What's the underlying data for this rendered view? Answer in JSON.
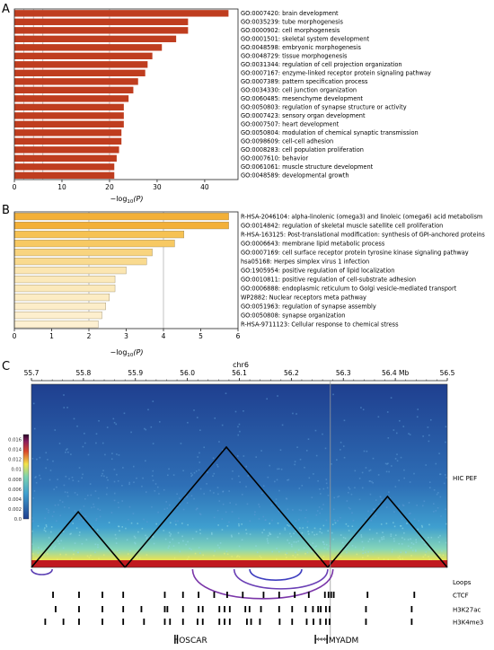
{
  "panels": {
    "a": {
      "letter": "A",
      "chart_data": {
        "type": "bar",
        "orientation": "horizontal",
        "xlabel_main": "−log",
        "xlabel_sub": "10",
        "xlabel_arg": "(P)",
        "xlim": [
          0,
          47
        ],
        "xticks": [
          0,
          10,
          20,
          30,
          40
        ],
        "grid_x": [
          2,
          4,
          6,
          20
        ],
        "bar_color": "#bf3d1f",
        "categories": [
          "GO:0007420: brain development",
          "GO:0035239: tube morphogenesis",
          "GO:0000902: cell morphogenesis",
          "GO:0001501: skeletal system development",
          "GO:0048598: embryonic morphogenesis",
          "GO:0048729: tissue morphogenesis",
          "GO:0031344: regulation of cell projection organization",
          "GO:0007167: enzyme-linked receptor protein signaling pathway",
          "GO:0007389: pattern specification process",
          "GO:0034330: cell junction organization",
          "GO:0060485: mesenchyme development",
          "GO:0050803: regulation of synapse structure or activity",
          "GO:0007423: sensory organ development",
          "GO:0007507: heart development",
          "GO:0050804: modulation of chemical synaptic transmission",
          "GO:0098609: cell-cell adhesion",
          "GO:0008283: cell population proliferation",
          "GO:0007610: behavior",
          "GO:0061061: muscle structure development",
          "GO:0048589: developmental growth"
        ],
        "values": [
          45,
          36.5,
          36.5,
          34,
          31,
          29,
          28,
          27.5,
          26,
          25,
          24,
          23,
          23,
          23,
          22.5,
          22.5,
          22,
          21.5,
          21,
          21
        ]
      }
    },
    "b": {
      "letter": "B",
      "chart_data": {
        "type": "bar",
        "orientation": "horizontal",
        "xlabel_main": "−log",
        "xlabel_sub": "10",
        "xlabel_arg": "(P)",
        "xlim": [
          0,
          6
        ],
        "xticks": [
          0,
          1,
          2,
          3,
          4,
          5,
          6
        ],
        "grid_x": [
          2,
          4
        ],
        "categories": [
          "R-HSA-2046104: alpha-linolenic (omega3) and linoleic (omega6) acid metabolism",
          "GO:0014842: regulation of skeletal muscle satellite cell proliferation",
          "R-HSA-163125: Post-translational modification: synthesis of GPI-anchored proteins",
          "GO:0006643: membrane lipid metabolic process",
          "GO:0007169: cell surface receptor protein tyrosine kinase signaling pathway",
          "hsa05168: Herpes simplex virus 1 infection",
          "GO:1905954: positive regulation of lipid localization",
          "GO:0010811: positive regulation of cell-substrate adhesion",
          "GO:0006888: endoplasmic reticulum to Golgi vesicle-mediated transport",
          "WP2882: Nuclear receptors meta pathway",
          "GO:0051963: regulation of synapse assembly",
          "GO:0050808: synapse organization",
          "R-HSA-9711123: Cellular response to chemical stress"
        ],
        "values": [
          5.75,
          5.75,
          4.55,
          4.3,
          3.7,
          3.55,
          3.0,
          2.7,
          2.7,
          2.55,
          2.45,
          2.35,
          2.25
        ],
        "colors": [
          "#f3b038",
          "#f3b038",
          "#f6c253",
          "#f7c963",
          "#f8d47f",
          "#f9da8f",
          "#fbe6b2",
          "#fbe9bb",
          "#fbe9bb",
          "#fcecc4",
          "#fcedc9",
          "#fdefce",
          "#fdf0d2"
        ]
      }
    },
    "c": {
      "letter": "C",
      "chart_data": {
        "type": "heatmap",
        "chrom": "chr6",
        "xlim": [
          55.7,
          56.5
        ],
        "xticks": [
          "55.7",
          "55.8",
          "55.9",
          "56.0",
          "56.1",
          "56.2",
          "56.3",
          "56.4 Mb",
          "56.5"
        ],
        "xtick_values": [
          55.7,
          55.8,
          55.9,
          56.0,
          56.1,
          56.2,
          56.3,
          56.4,
          56.5
        ],
        "colorbar_ticks": [
          "0.016",
          "0.014",
          "0.012",
          "0.01",
          "0.008",
          "0.006",
          "0.004",
          "0.002",
          "0.0"
        ],
        "colorbar_range": [
          0,
          0.017
        ],
        "hic_track_label": "HIC PEF",
        "domains": [
          [
            55.7,
            55.88
          ],
          [
            55.88,
            56.27
          ],
          [
            56.27,
            56.5
          ]
        ],
        "highlight_x": 56.275,
        "loops_label": "Loops",
        "loops": [
          [
            55.7,
            55.74
          ],
          [
            56.01,
            56.28
          ],
          [
            56.09,
            56.27
          ],
          [
            56.12,
            56.22
          ]
        ],
        "tracks": [
          {
            "name": "CTCF",
            "peaks": [
              55.74,
              55.79,
              55.835,
              55.875,
              55.955,
              55.99,
              56.02,
              56.05,
              56.075,
              56.105,
              56.145,
              56.175,
              56.205,
              56.232,
              56.263,
              56.27,
              56.275,
              56.28,
              56.345,
              56.435
            ]
          },
          {
            "name": "H3K27ac",
            "peaks": [
              55.745,
              55.79,
              55.835,
              55.875,
              55.91,
              55.955,
              55.96,
              55.99,
              56.02,
              56.028,
              56.06,
              56.07,
              56.08,
              56.11,
              56.118,
              56.14,
              56.175,
              56.2,
              56.226,
              56.24,
              56.25,
              56.255,
              56.265,
              56.272,
              56.342,
              56.43
            ]
          },
          {
            "name": "H3K4me3",
            "peaks": [
              55.725,
              55.76,
              55.79,
              55.835,
              55.875,
              55.915,
              55.955,
              55.965,
              55.99,
              56.018,
              56.028,
              56.06,
              56.07,
              56.08,
              56.113,
              56.121,
              56.138,
              56.176,
              56.2,
              56.228,
              56.241,
              56.254,
              56.265,
              56.272,
              56.342,
              56.43
            ]
          }
        ],
        "genes": [
          {
            "name": "OSCAR",
            "start": 55.975,
            "end": 55.982,
            "strand": "+"
          },
          {
            "name": "MYADM",
            "start": 56.245,
            "end": 56.27,
            "strand": "-"
          }
        ]
      }
    }
  }
}
